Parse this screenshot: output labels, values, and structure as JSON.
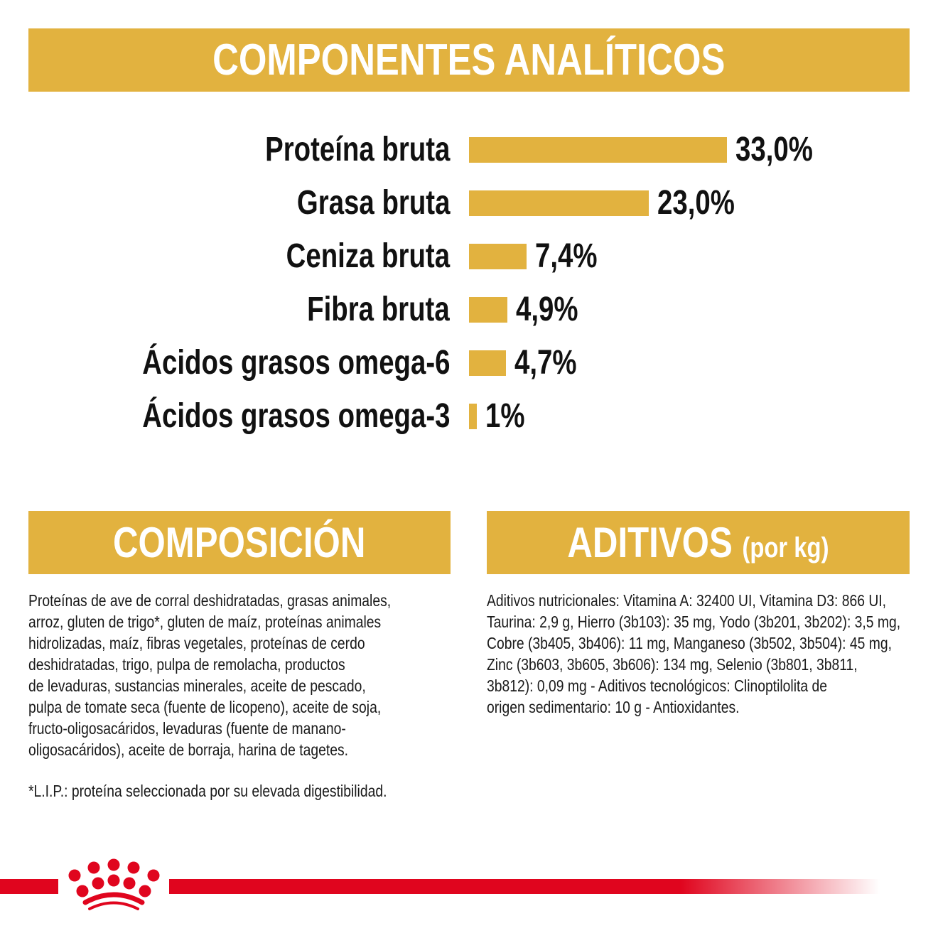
{
  "header": {
    "title": "COMPONENTES ANALÍTICOS"
  },
  "colors": {
    "accent": "#e2b23f",
    "brand_red": "#e0051e",
    "text": "#111111"
  },
  "chart_data": {
    "type": "bar",
    "orientation": "horizontal",
    "categories": [
      "Proteína bruta",
      "Grasa bruta",
      "Ceniza bruta",
      "Fibra bruta",
      "Ácidos grasos omega-6",
      "Ácidos grasos omega-3"
    ],
    "values": [
      33.0,
      23.0,
      7.4,
      4.9,
      4.7,
      1
    ],
    "value_labels": [
      "33,0%",
      "23,0%",
      "7,4%",
      "4,9%",
      "4,7%",
      "1%"
    ],
    "unit": "%",
    "grid": false
  },
  "composicion": {
    "title": "COMPOSICIÓN",
    "lines": [
      "Proteínas de ave de corral deshidratadas, grasas animales,",
      "arroz, gluten de trigo*, gluten de maíz, proteínas animales",
      "hidrolizadas, maíz, fibras vegetales, proteínas de cerdo",
      "deshidratadas, trigo, pulpa de remolacha, productos",
      "de levaduras, sustancias minerales, aceite de pescado,",
      "pulpa de tomate seca (fuente de licopeno), aceite de soja,",
      "fructo-oligosacáridos, levaduras (fuente de manano-",
      "oligosacáridos), aceite de borraja, harina de tagetes."
    ],
    "note": "*L.I.P.: proteína seleccionada por su elevada digestibilidad."
  },
  "aditivos": {
    "title": "ADITIVOS",
    "subtitle": "(por kg)",
    "lines": [
      "Aditivos nutricionales: Vitamina A: 32400 UI, Vitamina D3: 866 UI,",
      "Taurina: 2,9 g, Hierro (3b103): 35 mg, Yodo (3b201, 3b202): 3,5 mg,",
      "Cobre (3b405, 3b406): 11 mg, Manganeso (3b502, 3b504): 45 mg,",
      "Zinc (3b603, 3b605, 3b606): 134 mg, Selenio (3b801, 3b811,",
      "3b812): 0,09 mg - Aditivos tecnológicos: Clinoptilolita de",
      "origen sedimentario: 10 g - Antioxidantes."
    ]
  },
  "footer": {
    "logo": "royal-canin-crown-icon"
  }
}
